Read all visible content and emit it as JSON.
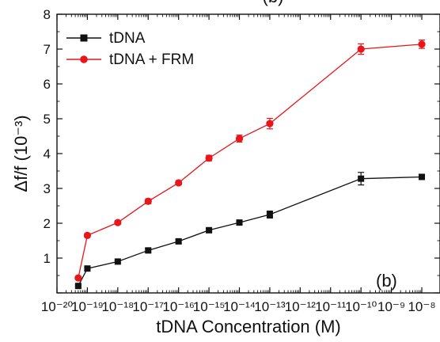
{
  "chart_data": {
    "type": "line",
    "title": "",
    "xlabel": "tDNA Concentration (M)",
    "ylabel": "Δf/f (10⁻³)",
    "xscale": "log",
    "xlim": [
      1e-20,
      1e-08
    ],
    "ylim": [
      0,
      8
    ],
    "xticks": [
      {
        "exp": -20,
        "label": "10⁻²⁰"
      },
      {
        "exp": -19,
        "label": "10⁻¹⁹"
      },
      {
        "exp": -18,
        "label": "10⁻¹⁸"
      },
      {
        "exp": -17,
        "label": "10⁻¹⁷"
      },
      {
        "exp": -16,
        "label": "10⁻¹⁶"
      },
      {
        "exp": -15,
        "label": "10⁻¹⁵"
      },
      {
        "exp": -14,
        "label": "10⁻¹⁴"
      },
      {
        "exp": -13,
        "label": "10⁻¹³"
      },
      {
        "exp": -12,
        "label": "10⁻¹²"
      },
      {
        "exp": -11,
        "label": "10⁻¹¹"
      },
      {
        "exp": -10,
        "label": "10⁻¹⁰"
      },
      {
        "exp": -9,
        "label": "10⁻⁹"
      },
      {
        "exp": -8,
        "label": "10⁻⁸"
      }
    ],
    "yticks": [
      1,
      2,
      3,
      4,
      5,
      6,
      7,
      8
    ],
    "legend_position": "top-left",
    "panel_label": "(b)",
    "series": [
      {
        "name": "tDNA",
        "color": "#111111",
        "marker": "square",
        "x": [
          5e-20,
          1e-19,
          1e-18,
          1e-17,
          1e-16,
          1e-15,
          1e-14,
          1e-13,
          1e-10,
          1e-08
        ],
        "y": [
          0.2,
          0.7,
          0.9,
          1.22,
          1.48,
          1.8,
          2.02,
          2.25,
          3.28,
          3.33
        ],
        "err": [
          0.03,
          0.04,
          0.04,
          0.05,
          0.05,
          0.05,
          0.06,
          0.1,
          0.18,
          0.06
        ]
      },
      {
        "name": "tDNA + FRM",
        "color": "#e8151b",
        "marker": "circle",
        "x": [
          5e-20,
          1e-19,
          1e-18,
          1e-17,
          1e-16,
          1e-15,
          1e-14,
          1e-13,
          1e-10,
          1e-08
        ],
        "y": [
          0.43,
          1.65,
          2.02,
          2.63,
          3.16,
          3.87,
          4.43,
          4.86,
          7.0,
          7.14
        ],
        "err": [
          0.04,
          0.05,
          0.05,
          0.07,
          0.06,
          0.08,
          0.1,
          0.15,
          0.15,
          0.12
        ]
      }
    ]
  }
}
